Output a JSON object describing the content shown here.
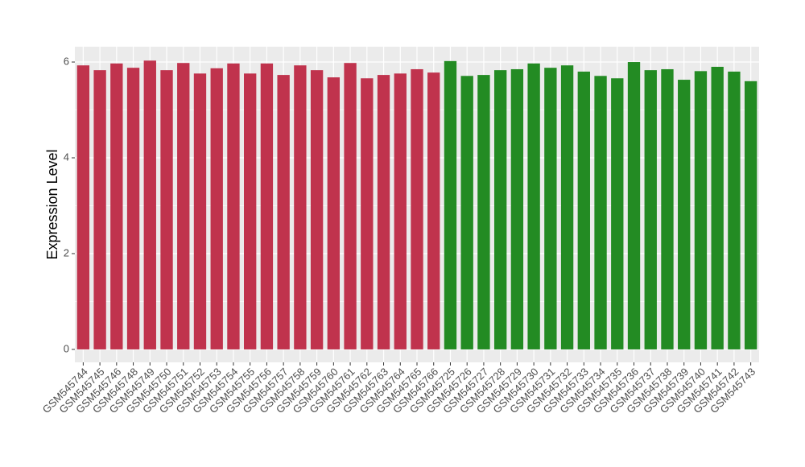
{
  "chart_data": {
    "type": "bar",
    "y_label": "Expression Level",
    "categories": [
      "GSM545744",
      "GSM545745",
      "GSM545746",
      "GSM545748",
      "GSM545749",
      "GSM545750",
      "GSM545751",
      "GSM545752",
      "GSM545753",
      "GSM545754",
      "GSM545755",
      "GSM545756",
      "GSM545757",
      "GSM545758",
      "GSM545759",
      "GSM545760",
      "GSM545761",
      "GSM545762",
      "GSM545763",
      "GSM545764",
      "GSM545765",
      "GSM545766",
      "GSM545725",
      "GSM545726",
      "GSM545727",
      "GSM545728",
      "GSM545729",
      "GSM545730",
      "GSM545731",
      "GSM545732",
      "GSM545733",
      "GSM545734",
      "GSM545735",
      "GSM545736",
      "GSM545737",
      "GSM545738",
      "GSM545739",
      "GSM545740",
      "GSM545741",
      "GSM545742",
      "GSM545743"
    ],
    "values": [
      5.93,
      5.83,
      5.97,
      5.88,
      6.03,
      5.83,
      5.98,
      5.76,
      5.87,
      5.97,
      5.76,
      5.97,
      5.73,
      5.93,
      5.83,
      5.68,
      5.98,
      5.66,
      5.73,
      5.76,
      5.85,
      5.78,
      6.02,
      5.71,
      5.73,
      5.83,
      5.85,
      5.97,
      5.88,
      5.93,
      5.8,
      5.71,
      5.66,
      6.0,
      5.83,
      5.85,
      5.63,
      5.81,
      5.9,
      5.8,
      5.6
    ],
    "colors": [
      "#c0334d",
      "#c0334d",
      "#c0334d",
      "#c0334d",
      "#c0334d",
      "#c0334d",
      "#c0334d",
      "#c0334d",
      "#c0334d",
      "#c0334d",
      "#c0334d",
      "#c0334d",
      "#c0334d",
      "#c0334d",
      "#c0334d",
      "#c0334d",
      "#c0334d",
      "#c0334d",
      "#c0334d",
      "#c0334d",
      "#c0334d",
      "#c0334d",
      "#238b23",
      "#238b23",
      "#238b23",
      "#238b23",
      "#238b23",
      "#238b23",
      "#238b23",
      "#238b23",
      "#238b23",
      "#238b23",
      "#238b23",
      "#238b23",
      "#238b23",
      "#238b23",
      "#238b23",
      "#238b23",
      "#238b23",
      "#238b23",
      "#238b23"
    ],
    "ylim": [
      -0.27,
      6.32
    ],
    "yticks": [
      0,
      2,
      4,
      6
    ],
    "grid": true
  }
}
